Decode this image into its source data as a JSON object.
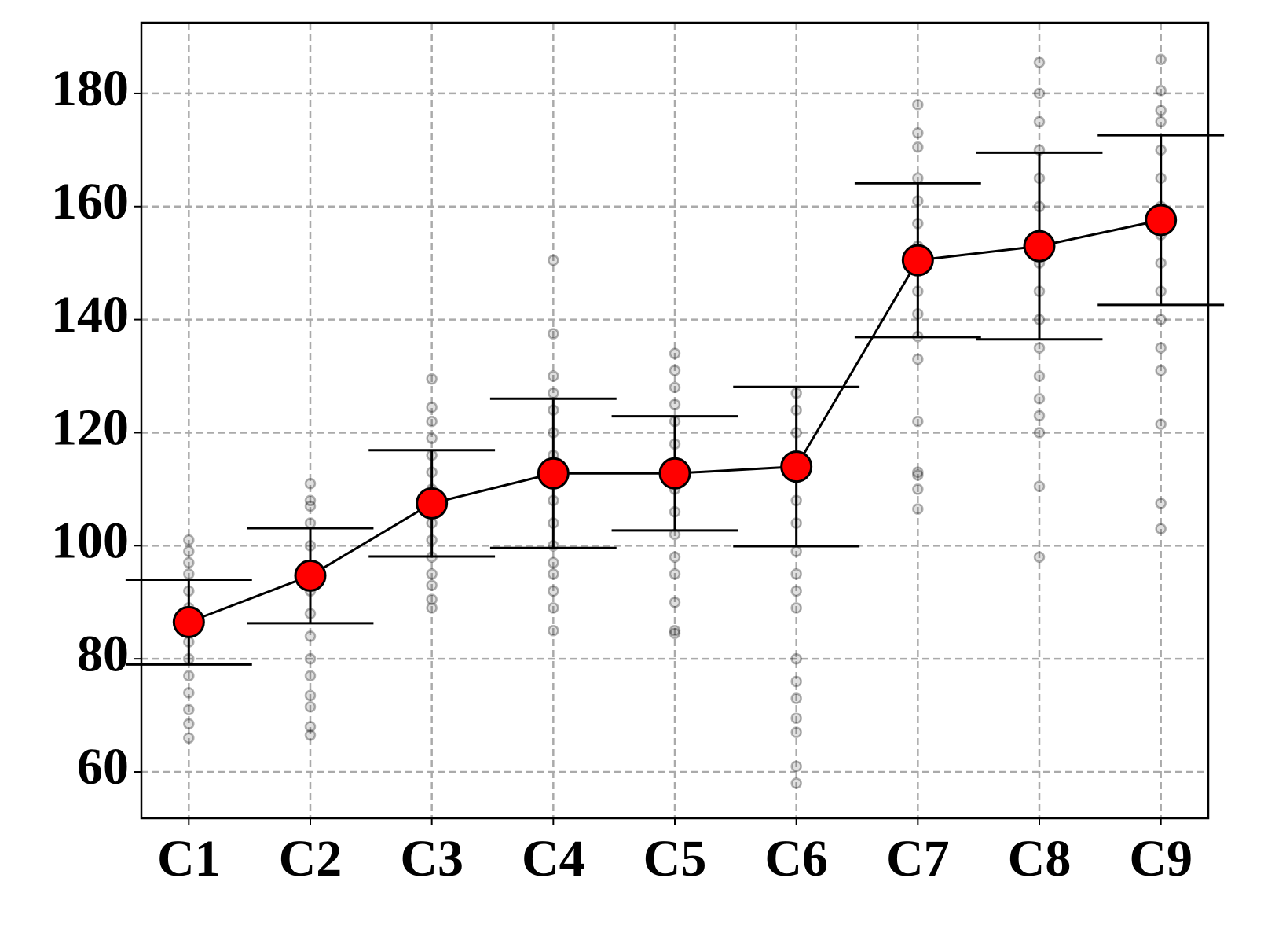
{
  "chart_data": {
    "type": "errorbar",
    "categories": [
      "C1",
      "C2",
      "C3",
      "C4",
      "C5",
      "C6",
      "C7",
      "C8",
      "C9"
    ],
    "values": [
      86.5,
      94.7,
      107.5,
      112.8,
      112.8,
      114.0,
      150.5,
      153.0,
      157.6
    ],
    "errors": [
      7.5,
      8.4,
      9.4,
      13.2,
      10.1,
      14.1,
      13.6,
      16.5,
      15.0
    ],
    "points": [
      [
        66,
        68.5,
        71,
        74,
        77,
        80,
        83,
        86,
        89,
        92,
        95,
        97,
        99,
        101
      ],
      [
        66.5,
        68,
        71.5,
        73.5,
        77,
        80,
        84,
        88,
        92,
        96,
        100,
        104,
        107,
        108,
        111
      ],
      [
        89,
        90.5,
        93,
        95,
        98,
        101,
        104,
        107,
        110,
        113,
        116,
        119,
        122,
        124.5,
        129.5
      ],
      [
        85,
        89,
        92,
        95,
        97,
        100,
        104,
        108,
        112,
        116,
        120,
        124,
        127,
        130,
        137.5,
        150.5
      ],
      [
        84.5,
        85,
        90,
        95,
        98,
        102,
        106,
        110,
        114,
        118,
        122,
        125,
        128,
        131,
        134
      ],
      [
        58,
        61,
        67,
        69.5,
        73,
        76,
        80,
        89,
        92,
        95,
        99,
        104,
        108,
        112,
        116,
        120,
        124,
        127
      ],
      [
        106.5,
        110,
        112.5,
        113,
        122,
        133,
        137,
        141,
        145,
        149,
        153,
        157,
        161,
        165,
        170.5,
        173,
        178
      ],
      [
        98,
        110.5,
        120,
        123,
        126,
        130,
        135,
        140,
        145,
        150,
        155,
        160,
        165,
        170,
        175,
        180,
        185.5
      ],
      [
        103,
        107.5,
        121.5,
        131,
        135,
        140,
        145,
        150,
        155,
        160,
        165,
        170,
        175,
        177,
        180.5,
        186
      ]
    ],
    "color": "#ff0000",
    "line_color": "#000000",
    "point_color": "#000000",
    "ylim": [
      51.8,
      192.5
    ],
    "yticks": [
      60,
      80,
      100,
      120,
      140,
      160,
      180
    ],
    "grid": true
  }
}
